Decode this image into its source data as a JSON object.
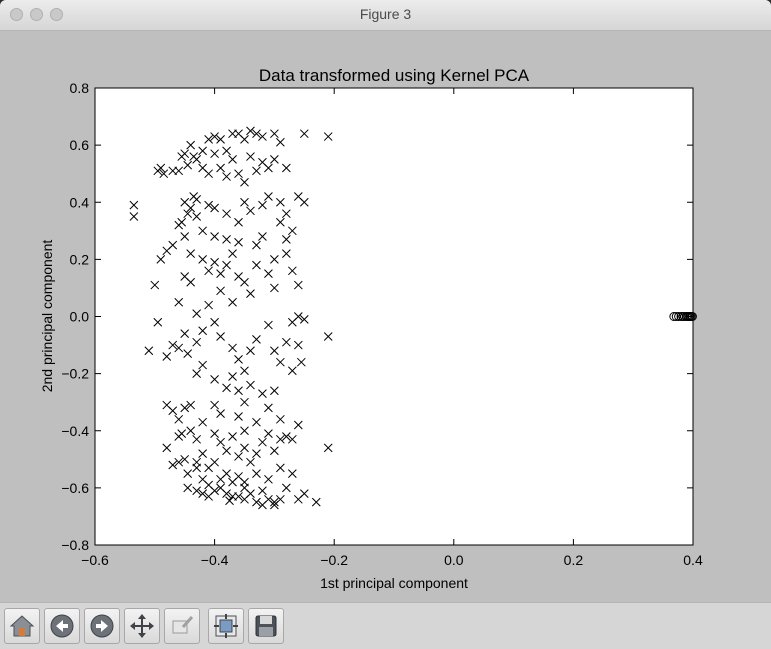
{
  "window": {
    "title": "Figure 3"
  },
  "toolbar": {
    "buttons": [
      {
        "name": "home",
        "icon": "home-icon"
      },
      {
        "name": "back",
        "icon": "back-arrow-icon"
      },
      {
        "name": "forward",
        "icon": "forward-arrow-icon"
      },
      {
        "name": "pan",
        "icon": "move-arrows-icon"
      },
      {
        "name": "zoom",
        "icon": "zoom-rect-icon"
      },
      {
        "name": "subplots",
        "icon": "subplots-config-icon"
      },
      {
        "name": "save",
        "icon": "floppy-save-icon"
      }
    ]
  },
  "chart_data": {
    "type": "scatter",
    "title": "Data transformed using Kernel PCA",
    "xlabel": "1st principal component",
    "ylabel": "2nd principal component",
    "xlim": [
      -0.6,
      0.4
    ],
    "ylim": [
      -0.8,
      0.8
    ],
    "xticks": [
      "−0.6",
      "−0.4",
      "−0.2",
      "0.0",
      "0.2",
      "0.4"
    ],
    "yticks": [
      "0.8",
      "0.6",
      "0.4",
      "0.2",
      "0.0",
      "−0.2",
      "−0.4",
      "−0.6",
      "−0.8"
    ],
    "grid": false,
    "series": [
      {
        "marker": "x",
        "color": "#000000",
        "points": [
          [
            -0.535,
            0.39
          ],
          [
            -0.535,
            0.35
          ],
          [
            -0.495,
            0.51
          ],
          [
            -0.49,
            0.52
          ],
          [
            -0.485,
            0.5
          ],
          [
            -0.47,
            0.51
          ],
          [
            -0.46,
            0.51
          ],
          [
            -0.455,
            0.56
          ],
          [
            -0.45,
            0.57
          ],
          [
            -0.445,
            0.53
          ],
          [
            -0.44,
            0.6
          ],
          [
            -0.435,
            0.56
          ],
          [
            -0.43,
            0.55
          ],
          [
            -0.42,
            0.58
          ],
          [
            -0.41,
            0.62
          ],
          [
            -0.4,
            0.63
          ],
          [
            -0.39,
            0.62
          ],
          [
            -0.38,
            0.58
          ],
          [
            -0.37,
            0.64
          ],
          [
            -0.36,
            0.64
          ],
          [
            -0.35,
            0.62
          ],
          [
            -0.34,
            0.65
          ],
          [
            -0.33,
            0.64
          ],
          [
            -0.32,
            0.63
          ],
          [
            -0.3,
            0.64
          ],
          [
            -0.29,
            0.61
          ],
          [
            -0.25,
            0.64
          ],
          [
            -0.21,
            0.63
          ],
          [
            -0.4,
            0.57
          ],
          [
            -0.39,
            0.52
          ],
          [
            -0.38,
            0.49
          ],
          [
            -0.37,
            0.55
          ],
          [
            -0.36,
            0.5
          ],
          [
            -0.35,
            0.47
          ],
          [
            -0.34,
            0.56
          ],
          [
            -0.33,
            0.51
          ],
          [
            -0.32,
            0.54
          ],
          [
            -0.31,
            0.52
          ],
          [
            -0.3,
            0.55
          ],
          [
            -0.28,
            0.52
          ],
          [
            -0.41,
            0.5
          ],
          [
            -0.42,
            0.52
          ],
          [
            -0.435,
            0.42
          ],
          [
            -0.43,
            0.41
          ],
          [
            -0.45,
            0.4
          ],
          [
            -0.44,
            0.38
          ],
          [
            -0.455,
            0.33
          ],
          [
            -0.46,
            0.32
          ],
          [
            -0.445,
            0.36
          ],
          [
            -0.43,
            0.35
          ],
          [
            -0.41,
            0.39
          ],
          [
            -0.4,
            0.38
          ],
          [
            -0.38,
            0.36
          ],
          [
            -0.36,
            0.33
          ],
          [
            -0.35,
            0.4
          ],
          [
            -0.34,
            0.37
          ],
          [
            -0.32,
            0.39
          ],
          [
            -0.31,
            0.42
          ],
          [
            -0.29,
            0.4
          ],
          [
            -0.28,
            0.36
          ],
          [
            -0.26,
            0.42
          ],
          [
            -0.25,
            0.4
          ],
          [
            -0.29,
            0.33
          ],
          [
            -0.27,
            0.3
          ],
          [
            -0.28,
            0.27
          ],
          [
            -0.32,
            0.28
          ],
          [
            -0.33,
            0.25
          ],
          [
            -0.36,
            0.26
          ],
          [
            -0.37,
            0.22
          ],
          [
            -0.38,
            0.27
          ],
          [
            -0.4,
            0.28
          ],
          [
            -0.42,
            0.3
          ],
          [
            -0.45,
            0.28
          ],
          [
            -0.48,
            0.23
          ],
          [
            -0.49,
            0.2
          ],
          [
            -0.47,
            0.25
          ],
          [
            -0.44,
            0.22
          ],
          [
            -0.42,
            0.2
          ],
          [
            -0.41,
            0.16
          ],
          [
            -0.4,
            0.19
          ],
          [
            -0.39,
            0.15
          ],
          [
            -0.38,
            0.18
          ],
          [
            -0.36,
            0.14
          ],
          [
            -0.35,
            0.12
          ],
          [
            -0.33,
            0.18
          ],
          [
            -0.31,
            0.15
          ],
          [
            -0.3,
            0.2
          ],
          [
            -0.28,
            0.22
          ],
          [
            -0.27,
            0.16
          ],
          [
            -0.26,
            0.11
          ],
          [
            -0.3,
            0.1
          ],
          [
            -0.34,
            0.08
          ],
          [
            -0.37,
            0.05
          ],
          [
            -0.39,
            0.09
          ],
          [
            -0.41,
            0.04
          ],
          [
            -0.43,
            0.01
          ],
          [
            -0.44,
            0.12
          ],
          [
            -0.45,
            0.14
          ],
          [
            -0.46,
            0.05
          ],
          [
            -0.5,
            0.11
          ],
          [
            -0.51,
            -0.12
          ],
          [
            -0.495,
            -0.02
          ],
          [
            -0.48,
            -0.14
          ],
          [
            -0.47,
            -0.1
          ],
          [
            -0.46,
            -0.11
          ],
          [
            -0.45,
            -0.06
          ],
          [
            -0.445,
            -0.13
          ],
          [
            -0.43,
            -0.09
          ],
          [
            -0.42,
            -0.05
          ],
          [
            -0.4,
            -0.02
          ],
          [
            -0.39,
            -0.07
          ],
          [
            -0.37,
            -0.11
          ],
          [
            -0.36,
            -0.15
          ],
          [
            -0.35,
            -0.19
          ],
          [
            -0.34,
            -0.12
          ],
          [
            -0.33,
            -0.08
          ],
          [
            -0.31,
            -0.03
          ],
          [
            -0.3,
            -0.12
          ],
          [
            -0.29,
            -0.16
          ],
          [
            -0.28,
            -0.09
          ],
          [
            -0.27,
            -0.02
          ],
          [
            -0.26,
            0.0
          ],
          [
            -0.25,
            -0.01
          ],
          [
            -0.21,
            -0.07
          ],
          [
            -0.26,
            -0.1
          ],
          [
            -0.255,
            -0.16
          ],
          [
            -0.27,
            -0.19
          ],
          [
            -0.43,
            -0.2
          ],
          [
            -0.42,
            -0.17
          ],
          [
            -0.4,
            -0.22
          ],
          [
            -0.38,
            -0.25
          ],
          [
            -0.37,
            -0.21
          ],
          [
            -0.36,
            -0.26
          ],
          [
            -0.35,
            -0.3
          ],
          [
            -0.34,
            -0.24
          ],
          [
            -0.32,
            -0.27
          ],
          [
            -0.31,
            -0.32
          ],
          [
            -0.3,
            -0.26
          ],
          [
            -0.29,
            -0.36
          ],
          [
            -0.28,
            -0.42
          ],
          [
            -0.27,
            -0.43
          ],
          [
            -0.26,
            -0.38
          ],
          [
            -0.21,
            -0.46
          ],
          [
            -0.4,
            -0.31
          ],
          [
            -0.39,
            -0.34
          ],
          [
            -0.36,
            -0.35
          ],
          [
            -0.35,
            -0.4
          ],
          [
            -0.33,
            -0.37
          ],
          [
            -0.32,
            -0.44
          ],
          [
            -0.31,
            -0.41
          ],
          [
            -0.3,
            -0.47
          ],
          [
            -0.29,
            -0.43
          ],
          [
            -0.44,
            -0.31
          ],
          [
            -0.45,
            -0.32
          ],
          [
            -0.46,
            -0.36
          ],
          [
            -0.47,
            -0.33
          ],
          [
            -0.48,
            -0.31
          ],
          [
            -0.44,
            -0.4
          ],
          [
            -0.43,
            -0.43
          ],
          [
            -0.42,
            -0.37
          ],
          [
            -0.4,
            -0.41
          ],
          [
            -0.39,
            -0.44
          ],
          [
            -0.38,
            -0.47
          ],
          [
            -0.37,
            -0.42
          ],
          [
            -0.36,
            -0.49
          ],
          [
            -0.35,
            -0.46
          ],
          [
            -0.34,
            -0.51
          ],
          [
            -0.33,
            -0.48
          ],
          [
            -0.455,
            -0.41
          ],
          [
            -0.46,
            -0.42
          ],
          [
            -0.48,
            -0.46
          ],
          [
            -0.47,
            -0.52
          ],
          [
            -0.46,
            -0.51
          ],
          [
            -0.45,
            -0.5
          ],
          [
            -0.445,
            -0.55
          ],
          [
            -0.43,
            -0.53
          ],
          [
            -0.42,
            -0.57
          ],
          [
            -0.41,
            -0.59
          ],
          [
            -0.4,
            -0.61
          ],
          [
            -0.39,
            -0.6
          ],
          [
            -0.38,
            -0.62
          ],
          [
            -0.37,
            -0.63
          ],
          [
            -0.36,
            -0.63
          ],
          [
            -0.35,
            -0.6
          ],
          [
            -0.34,
            -0.62
          ],
          [
            -0.33,
            -0.65
          ],
          [
            -0.32,
            -0.61
          ],
          [
            -0.31,
            -0.64
          ],
          [
            -0.3,
            -0.66
          ],
          [
            -0.29,
            -0.64
          ],
          [
            -0.28,
            -0.6
          ],
          [
            -0.27,
            -0.55
          ],
          [
            -0.25,
            -0.62
          ],
          [
            -0.23,
            -0.65
          ],
          [
            -0.29,
            -0.53
          ],
          [
            -0.31,
            -0.57
          ],
          [
            -0.33,
            -0.55
          ],
          [
            -0.36,
            -0.56
          ],
          [
            -0.38,
            -0.55
          ],
          [
            -0.4,
            -0.51
          ],
          [
            -0.42,
            -0.48
          ],
          [
            -0.43,
            -0.51
          ],
          [
            -0.41,
            -0.53
          ],
          [
            -0.39,
            -0.57
          ],
          [
            -0.37,
            -0.58
          ],
          [
            -0.35,
            -0.58
          ],
          [
            -0.445,
            -0.6
          ],
          [
            -0.43,
            -0.61
          ],
          [
            -0.42,
            -0.62
          ],
          [
            -0.41,
            -0.63
          ],
          [
            -0.26,
            -0.64
          ],
          [
            -0.3,
            -0.65
          ],
          [
            -0.32,
            -0.66
          ],
          [
            -0.35,
            -0.64
          ],
          [
            -0.375,
            -0.645
          ]
        ]
      },
      {
        "marker": "o",
        "color": "#000000",
        "points": [
          [
            0.368,
            0.0
          ],
          [
            0.372,
            0.0
          ],
          [
            0.376,
            0.0
          ],
          [
            0.38,
            0.0
          ],
          [
            0.383,
            0.0
          ],
          [
            0.386,
            0.0
          ],
          [
            0.389,
            0.0
          ],
          [
            0.391,
            0.0
          ],
          [
            0.393,
            0.0
          ],
          [
            0.395,
            0.0
          ],
          [
            0.397,
            0.0
          ],
          [
            0.399,
            0.0
          ]
        ]
      }
    ]
  }
}
